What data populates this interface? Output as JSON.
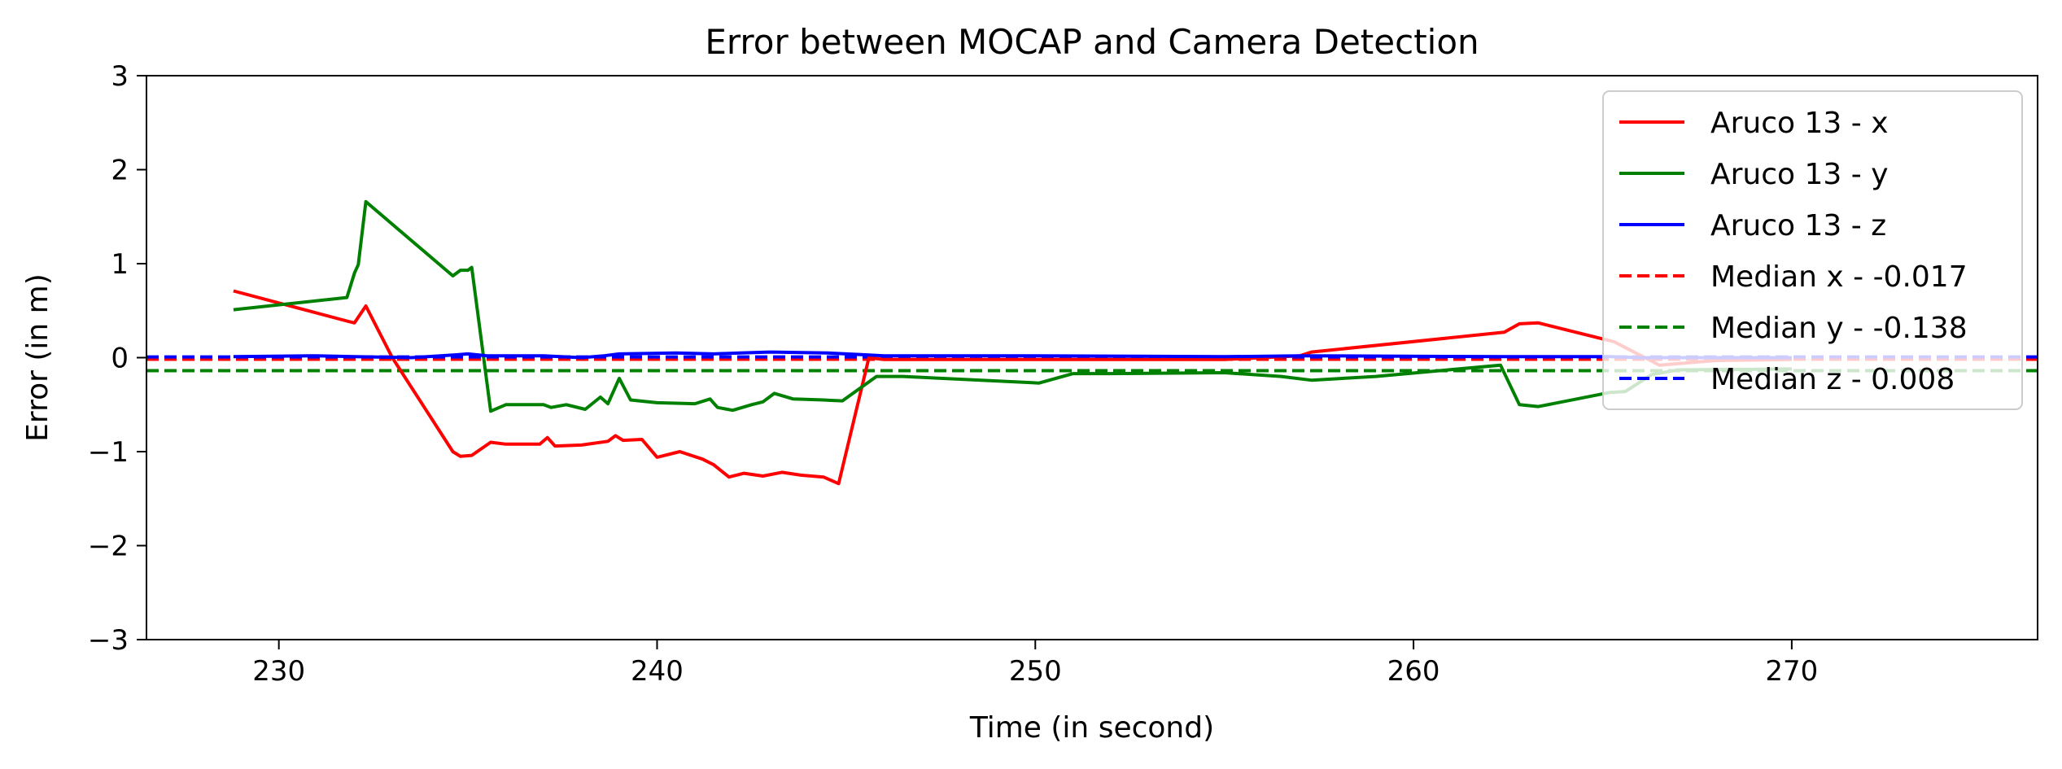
{
  "chart_data": {
    "type": "line",
    "title": "Error between MOCAP and Camera Detection",
    "xlabel": "Time (in second)",
    "ylabel": "Error (in m)",
    "xlim": [
      226.5,
      276.5
    ],
    "ylim": [
      -3,
      3
    ],
    "xticks": [
      230,
      240,
      250,
      260,
      270
    ],
    "yticks": [
      -3,
      -2,
      -1,
      0,
      1,
      2,
      3
    ],
    "ytick_labels": [
      "−3",
      "−2",
      "−1",
      "0",
      "1",
      "2",
      "3"
    ],
    "grid": false,
    "legend_position": "upper right",
    "series": [
      {
        "name": "Aruco 13 - x",
        "color": "#ff0000",
        "style": "solid",
        "points": [
          [
            228.8,
            0.71
          ],
          [
            231.8,
            0.39
          ],
          [
            232.0,
            0.37
          ],
          [
            232.3,
            0.55
          ],
          [
            233.0,
            0.0
          ],
          [
            234.6,
            -1.0
          ],
          [
            234.8,
            -1.05
          ],
          [
            235.1,
            -1.04
          ],
          [
            235.6,
            -0.9
          ],
          [
            236.0,
            -0.92
          ],
          [
            236.9,
            -0.92
          ],
          [
            237.1,
            -0.85
          ],
          [
            237.3,
            -0.94
          ],
          [
            238.0,
            -0.93
          ],
          [
            238.7,
            -0.89
          ],
          [
            238.9,
            -0.83
          ],
          [
            239.1,
            -0.88
          ],
          [
            239.6,
            -0.87
          ],
          [
            240.0,
            -1.06
          ],
          [
            240.6,
            -1.0
          ],
          [
            241.2,
            -1.08
          ],
          [
            241.5,
            -1.14
          ],
          [
            241.9,
            -1.27
          ],
          [
            242.3,
            -1.23
          ],
          [
            242.8,
            -1.26
          ],
          [
            243.3,
            -1.22
          ],
          [
            243.8,
            -1.25
          ],
          [
            244.4,
            -1.27
          ],
          [
            244.8,
            -1.34
          ],
          [
            245.6,
            0.0
          ],
          [
            246.0,
            -0.02
          ],
          [
            250.0,
            -0.02
          ],
          [
            255.0,
            -0.02
          ],
          [
            257.0,
            0.02
          ],
          [
            257.3,
            0.06
          ],
          [
            262.4,
            0.27
          ],
          [
            262.8,
            0.36
          ],
          [
            263.3,
            0.37
          ],
          [
            265.3,
            0.17
          ],
          [
            266.5,
            -0.08
          ],
          [
            268.0,
            -0.03
          ],
          [
            270.0,
            -0.02
          ]
        ]
      },
      {
        "name": "Aruco 13 - y",
        "color": "#008000",
        "style": "solid",
        "points": [
          [
            228.8,
            0.51
          ],
          [
            231.8,
            0.64
          ],
          [
            232.0,
            0.9
          ],
          [
            232.1,
            0.99
          ],
          [
            232.3,
            1.66
          ],
          [
            234.6,
            0.87
          ],
          [
            234.8,
            0.93
          ],
          [
            235.0,
            0.93
          ],
          [
            235.1,
            0.96
          ],
          [
            235.6,
            -0.57
          ],
          [
            236.0,
            -0.5
          ],
          [
            236.8,
            -0.5
          ],
          [
            237.0,
            -0.5
          ],
          [
            237.2,
            -0.53
          ],
          [
            237.6,
            -0.5
          ],
          [
            238.1,
            -0.55
          ],
          [
            238.5,
            -0.42
          ],
          [
            238.7,
            -0.49
          ],
          [
            239.0,
            -0.22
          ],
          [
            239.3,
            -0.45
          ],
          [
            240.0,
            -0.48
          ],
          [
            241.0,
            -0.49
          ],
          [
            241.4,
            -0.44
          ],
          [
            241.6,
            -0.53
          ],
          [
            242.0,
            -0.56
          ],
          [
            242.5,
            -0.5
          ],
          [
            242.8,
            -0.47
          ],
          [
            243.1,
            -0.38
          ],
          [
            243.6,
            -0.44
          ],
          [
            244.4,
            -0.45
          ],
          [
            244.9,
            -0.46
          ],
          [
            245.8,
            -0.2
          ],
          [
            246.5,
            -0.2
          ],
          [
            250.1,
            -0.27
          ],
          [
            251.0,
            -0.17
          ],
          [
            252.0,
            -0.17
          ],
          [
            255.0,
            -0.16
          ],
          [
            256.5,
            -0.2
          ],
          [
            257.3,
            -0.24
          ],
          [
            259.0,
            -0.2
          ],
          [
            262.3,
            -0.08
          ],
          [
            262.8,
            -0.5
          ],
          [
            263.3,
            -0.52
          ],
          [
            265.2,
            -0.37
          ],
          [
            265.6,
            -0.36
          ],
          [
            266.3,
            -0.18
          ],
          [
            267.0,
            -0.13
          ],
          [
            270.0,
            -0.12
          ]
        ]
      },
      {
        "name": "Aruco 13 - z",
        "color": "#0000ff",
        "style": "solid",
        "points": [
          [
            228.8,
            0.01
          ],
          [
            231.0,
            0.02
          ],
          [
            232.0,
            0.01
          ],
          [
            233.5,
            0.0
          ],
          [
            234.7,
            0.03
          ],
          [
            235.0,
            0.04
          ],
          [
            235.5,
            0.02
          ],
          [
            237.0,
            0.02
          ],
          [
            238.0,
            0.0
          ],
          [
            238.6,
            0.02
          ],
          [
            239.0,
            0.04
          ],
          [
            240.5,
            0.05
          ],
          [
            241.5,
            0.04
          ],
          [
            242.2,
            0.05
          ],
          [
            243.0,
            0.06
          ],
          [
            244.5,
            0.05
          ],
          [
            245.5,
            0.03
          ],
          [
            246.0,
            0.02
          ],
          [
            250.0,
            0.02
          ],
          [
            255.0,
            0.01
          ],
          [
            257.0,
            0.02
          ],
          [
            262.5,
            0.01
          ],
          [
            265.2,
            0.01
          ],
          [
            266.0,
            0.0
          ],
          [
            270.0,
            0.0
          ]
        ]
      },
      {
        "name": "Median x - -0.017",
        "color": "#ff0000",
        "style": "dashed",
        "value": -0.017
      },
      {
        "name": "Median y - -0.138",
        "color": "#008000",
        "style": "dashed",
        "value": -0.138
      },
      {
        "name": "Median z - 0.008",
        "color": "#0000ff",
        "style": "dashed",
        "value": 0.008
      }
    ]
  }
}
